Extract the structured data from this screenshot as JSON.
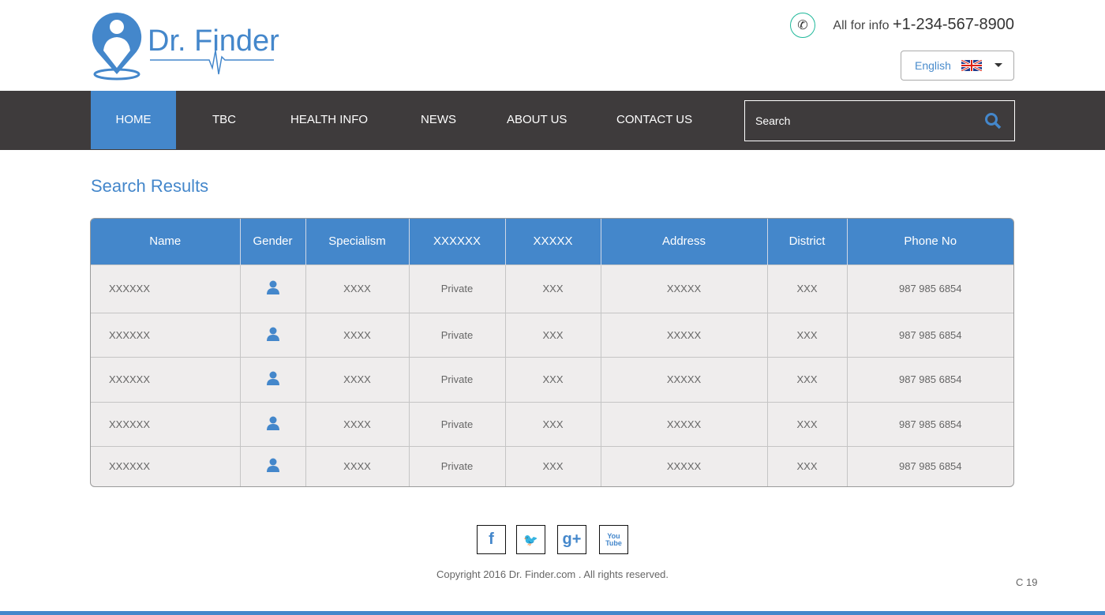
{
  "brand": {
    "name": "Dr. Finder",
    "color": "#4487cb"
  },
  "header": {
    "info_label": "All for info",
    "phone": "+1-234-567-8900",
    "language": "English"
  },
  "nav": {
    "items": [
      "HOME",
      "TBC",
      "HEALTH INFO",
      "NEWS",
      "ABOUT US",
      "CONTACT US"
    ],
    "active": "HOME",
    "search_placeholder": "Search"
  },
  "main": {
    "title": "Search Results",
    "columns": [
      "Name",
      "Gender",
      "Specialism",
      "XXXXXX",
      "XXXXX",
      "Address",
      "District",
      "Phone No"
    ],
    "rows": [
      {
        "name": "XXXXXX",
        "gender": "user-icon",
        "specialism": "XXXX",
        "type": "Private",
        "c5": "XXX",
        "address": "XXXXX",
        "district": "XXX",
        "phone": "987 985 6854"
      },
      {
        "name": "XXXXXX",
        "gender": "user-icon",
        "specialism": "XXXX",
        "type": "Private",
        "c5": "XXX",
        "address": "XXXXX",
        "district": "XXX",
        "phone": "987 985 6854"
      },
      {
        "name": "XXXXXX",
        "gender": "user-icon",
        "specialism": "XXXX",
        "type": "Private",
        "c5": "XXX",
        "address": "XXXXX",
        "district": "XXX",
        "phone": "987 985 6854"
      },
      {
        "name": "XXXXXX",
        "gender": "user-icon",
        "specialism": "XXXX",
        "type": "Private",
        "c5": "XXX",
        "address": "XXXXX",
        "district": "XXX",
        "phone": "987 985 6854"
      },
      {
        "name": "XXXXXX",
        "gender": "user-icon",
        "specialism": "XXXX",
        "type": "Private",
        "c5": "XXX",
        "address": "XXXXX",
        "district": "XXX",
        "phone": "987 985 6854"
      }
    ]
  },
  "footer": {
    "social": [
      "facebook-icon",
      "twitter-icon",
      "google-plus-icon",
      "youtube-icon"
    ],
    "copyright": "Copyright 2016  Dr. Finder.com  . All rights reserved.",
    "page_code": "C 19"
  }
}
